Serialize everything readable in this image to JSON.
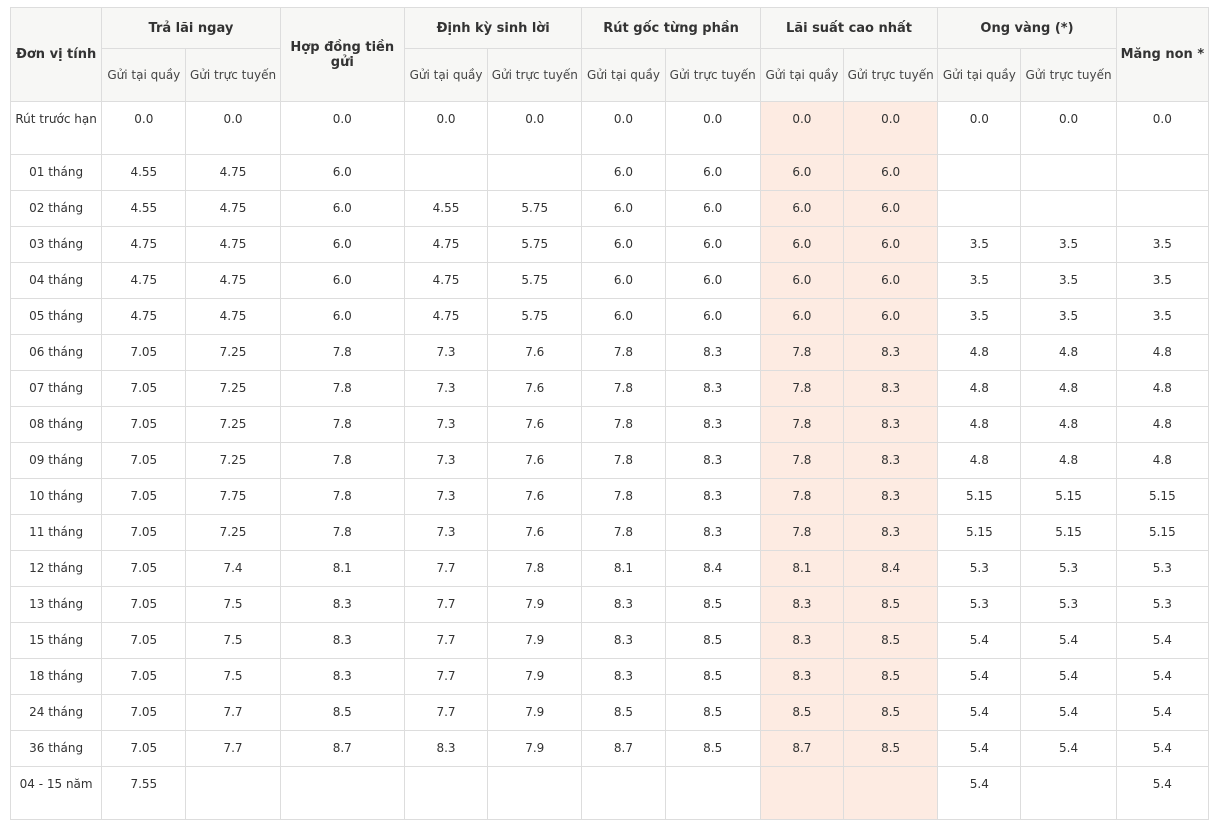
{
  "headers": {
    "unit": "Đơn vị tính",
    "groups": [
      {
        "label": "Trả lãi ngay",
        "span": 2
      },
      {
        "label": "Hợp đồng tiền gửi",
        "span": 1
      },
      {
        "label": "Định kỳ sinh lời",
        "span": 2
      },
      {
        "label": "Rút gốc từng phần",
        "span": 2
      },
      {
        "label": "Lãi suất cao nhất",
        "span": 2
      },
      {
        "label": "Ong vàng (*)",
        "span": 2
      },
      {
        "label": "Măng non *",
        "span": 1
      }
    ],
    "sub": [
      "Gửi tại quầy",
      "Gửi trực tuyến"
    ]
  },
  "highlight_color": "#fdebe2",
  "rows": [
    {
      "unit": "Rút trước hạn",
      "values": [
        "0.0",
        "0.0",
        "0.0",
        "0.0",
        "0.0",
        "0.0",
        "0.0",
        "0.0",
        "0.0",
        "0.0",
        "0.0",
        "0.0"
      ]
    },
    {
      "unit": "01 tháng",
      "values": [
        "4.55",
        "4.75",
        "6.0",
        "",
        "",
        "6.0",
        "6.0",
        "6.0",
        "6.0",
        "",
        "",
        ""
      ]
    },
    {
      "unit": "02 tháng",
      "values": [
        "4.55",
        "4.75",
        "6.0",
        "4.55",
        "5.75",
        "6.0",
        "6.0",
        "6.0",
        "6.0",
        "",
        "",
        ""
      ]
    },
    {
      "unit": "03 tháng",
      "values": [
        "4.75",
        "4.75",
        "6.0",
        "4.75",
        "5.75",
        "6.0",
        "6.0",
        "6.0",
        "6.0",
        "3.5",
        "3.5",
        "3.5"
      ]
    },
    {
      "unit": "04 tháng",
      "values": [
        "4.75",
        "4.75",
        "6.0",
        "4.75",
        "5.75",
        "6.0",
        "6.0",
        "6.0",
        "6.0",
        "3.5",
        "3.5",
        "3.5"
      ]
    },
    {
      "unit": "05 tháng",
      "values": [
        "4.75",
        "4.75",
        "6.0",
        "4.75",
        "5.75",
        "6.0",
        "6.0",
        "6.0",
        "6.0",
        "3.5",
        "3.5",
        "3.5"
      ]
    },
    {
      "unit": "06 tháng",
      "values": [
        "7.05",
        "7.25",
        "7.8",
        "7.3",
        "7.6",
        "7.8",
        "8.3",
        "7.8",
        "8.3",
        "4.8",
        "4.8",
        "4.8"
      ]
    },
    {
      "unit": "07 tháng",
      "values": [
        "7.05",
        "7.25",
        "7.8",
        "7.3",
        "7.6",
        "7.8",
        "8.3",
        "7.8",
        "8.3",
        "4.8",
        "4.8",
        "4.8"
      ]
    },
    {
      "unit": "08 tháng",
      "values": [
        "7.05",
        "7.25",
        "7.8",
        "7.3",
        "7.6",
        "7.8",
        "8.3",
        "7.8",
        "8.3",
        "4.8",
        "4.8",
        "4.8"
      ]
    },
    {
      "unit": "09 tháng",
      "values": [
        "7.05",
        "7.25",
        "7.8",
        "7.3",
        "7.6",
        "7.8",
        "8.3",
        "7.8",
        "8.3",
        "4.8",
        "4.8",
        "4.8"
      ]
    },
    {
      "unit": "10 tháng",
      "values": [
        "7.05",
        "7.75",
        "7.8",
        "7.3",
        "7.6",
        "7.8",
        "8.3",
        "7.8",
        "8.3",
        "5.15",
        "5.15",
        "5.15"
      ]
    },
    {
      "unit": "11 tháng",
      "values": [
        "7.05",
        "7.25",
        "7.8",
        "7.3",
        "7.6",
        "7.8",
        "8.3",
        "7.8",
        "8.3",
        "5.15",
        "5.15",
        "5.15"
      ]
    },
    {
      "unit": "12 tháng",
      "values": [
        "7.05",
        "7.4",
        "8.1",
        "7.7",
        "7.8",
        "8.1",
        "8.4",
        "8.1",
        "8.4",
        "5.3",
        "5.3",
        "5.3"
      ]
    },
    {
      "unit": "13 tháng",
      "values": [
        "7.05",
        "7.5",
        "8.3",
        "7.7",
        "7.9",
        "8.3",
        "8.5",
        "8.3",
        "8.5",
        "5.3",
        "5.3",
        "5.3"
      ]
    },
    {
      "unit": "15 tháng",
      "values": [
        "7.05",
        "7.5",
        "8.3",
        "7.7",
        "7.9",
        "8.3",
        "8.5",
        "8.3",
        "8.5",
        "5.4",
        "5.4",
        "5.4"
      ]
    },
    {
      "unit": "18 tháng",
      "values": [
        "7.05",
        "7.5",
        "8.3",
        "7.7",
        "7.9",
        "8.3",
        "8.5",
        "8.3",
        "8.5",
        "5.4",
        "5.4",
        "5.4"
      ]
    },
    {
      "unit": "24 tháng",
      "values": [
        "7.05",
        "7.7",
        "8.5",
        "7.7",
        "7.9",
        "8.5",
        "8.5",
        "8.5",
        "8.5",
        "5.4",
        "5.4",
        "5.4"
      ]
    },
    {
      "unit": "36 tháng",
      "values": [
        "7.05",
        "7.7",
        "8.7",
        "8.3",
        "7.9",
        "8.7",
        "8.5",
        "8.7",
        "8.5",
        "5.4",
        "5.4",
        "5.4"
      ]
    },
    {
      "unit": "04 - 15 năm",
      "values": [
        "7.55",
        "",
        "",
        "",
        "",
        "",
        "",
        "",
        "",
        "5.4",
        "",
        "5.4"
      ]
    }
  ]
}
